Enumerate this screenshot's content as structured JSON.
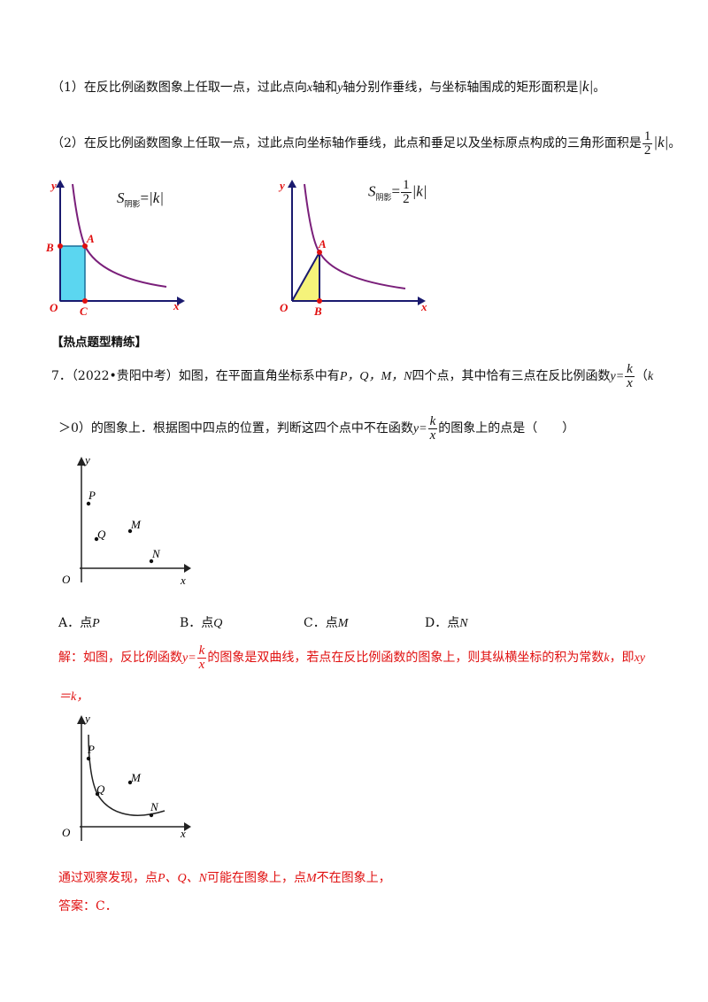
{
  "intro": {
    "item1": {
      "prefix": "（1）在反比例函数图象上任取一点，过此点向",
      "x": "x",
      "mid1": "轴和",
      "y": "y",
      "mid2": "轴分别作垂线，与坐标轴围成的矩形面积是",
      "value": "|k|",
      "end": "。"
    },
    "item2": {
      "text": "（2）在反比例函数图象上任取一点，过此点向坐标轴作垂线，此点和垂足以及坐标原点构成的三角形面积是",
      "num": "1",
      "den": "2",
      "value": "|k|",
      "end": "。"
    }
  },
  "figures": {
    "fig1": {
      "axis_y": "y",
      "axis_x": "x",
      "origin": "O",
      "point_a": "A",
      "point_b": "B",
      "point_c": "C",
      "formula_s": "S",
      "formula_sub": "阴影",
      "formula_eq": "=",
      "formula_val": "|k|"
    },
    "fig2": {
      "axis_y": "y",
      "axis_x": "x",
      "origin": "O",
      "point_a": "A",
      "point_b": "B",
      "formula_s": "S",
      "formula_sub": "阴影",
      "formula_eq": "=",
      "formula_num": "1",
      "formula_den": "2",
      "formula_val": "|k|"
    }
  },
  "section_title": "【热点题型精练】",
  "question": {
    "number": "7．",
    "source": "（2022•贵阳中考）如图，在平面直角坐标系中有",
    "points": "P，Q，M，N",
    "line1_rest": "四个点，其中恰有三点在反比例函数",
    "func_y": "y=",
    "func_num": "k",
    "func_den": "x",
    "line1_tail": "（",
    "k_letter": "k",
    "line2_start": "＞0）的图象上．根据图中四点的位置，判断这四个点中不在函数",
    "line2_end": "的图象上的点是（　　）"
  },
  "q_figure": {
    "axis_y": "y",
    "axis_x": "x",
    "origin": "O",
    "p": "P",
    "q": "Q",
    "m": "M",
    "n": "N"
  },
  "options": [
    {
      "letter": "A．点",
      "point": "P"
    },
    {
      "letter": "B．点",
      "point": "Q"
    },
    {
      "letter": "C．点",
      "point": "M"
    },
    {
      "letter": "D．点",
      "point": "N"
    }
  ],
  "solution": {
    "line1_a": "解：如图，反比例函数",
    "line1_b": "的图象是双曲线，若点在反比例函数的图象上，则其纵横坐标的积为常数",
    "k": "k",
    "line1_c": "，即",
    "xy": "xy",
    "line2": "＝k，",
    "observe_a": "通过观察发现，点",
    "observe_pts": "P、Q、N",
    "observe_b": "可能在图象上，点",
    "observe_m": "M",
    "observe_c": "不在图象上，",
    "answer": "答案：C．"
  },
  "colors": {
    "curve": "#7a1f7a",
    "rect_fill": "#5bd6f0",
    "tri_fill": "#f5f37a",
    "axis": "#1a1a6e",
    "label_red": "#e01010",
    "solution_red": "#e01010"
  }
}
